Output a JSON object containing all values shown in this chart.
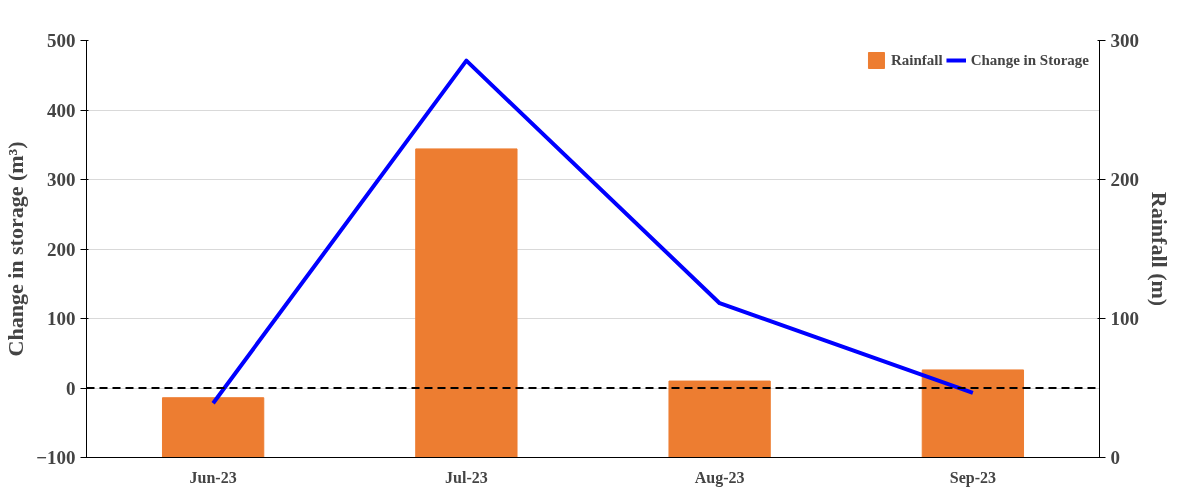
{
  "chart_data": {
    "type": "bar",
    "categories": [
      "Jun-23",
      "Jul-23",
      "Aug-23",
      "Sep-23"
    ],
    "ylabel": "Change in storage (m³)",
    "y2label": "Rainfall (m)",
    "ylim": [
      -100,
      500
    ],
    "yticks": [
      -100,
      0,
      100,
      200,
      300,
      400,
      500
    ],
    "y2lim": [
      0,
      300
    ],
    "y2ticks": [
      0,
      100,
      200,
      300
    ],
    "series": [
      {
        "name": "Rainfall",
        "axis": "y2",
        "color": "#ed7d31",
        "values": [
          43,
          222,
          55,
          63
        ]
      },
      {
        "name": "Change in Storage",
        "type": "line",
        "axis": "y",
        "color": "#0000ff",
        "values": [
          -22,
          471,
          122,
          -7
        ]
      }
    ],
    "ref_lines": [
      {
        "axis": "y",
        "value": 0,
        "label": null,
        "color": "#000000",
        "line_style": "dashed"
      }
    ],
    "grid": "y",
    "legend": "top"
  }
}
